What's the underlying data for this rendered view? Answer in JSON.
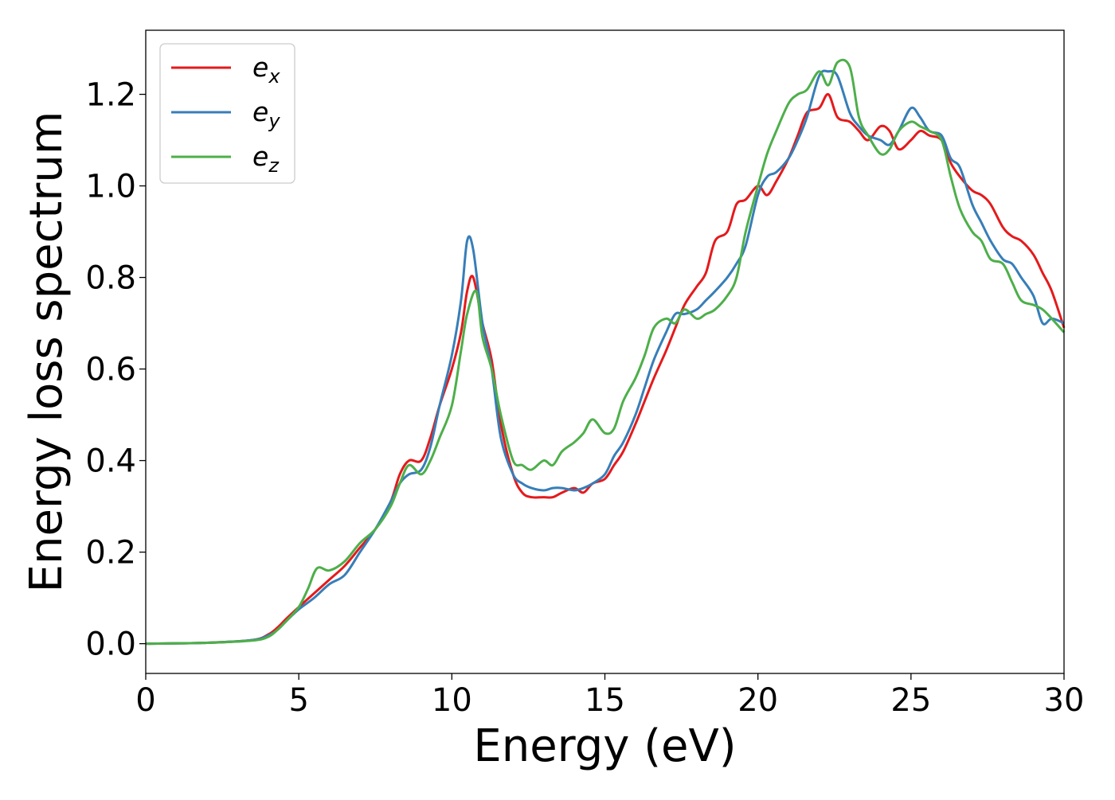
{
  "chart_data": {
    "type": "line",
    "title": "",
    "xlabel": "Energy (eV)",
    "ylabel": "Energy loss spectrum",
    "xlim": [
      0,
      30
    ],
    "ylim": [
      -0.065,
      1.34
    ],
    "xticks": [
      0,
      5,
      10,
      15,
      20,
      25,
      30
    ],
    "xtick_labels": [
      "0",
      "5",
      "10",
      "15",
      "20",
      "25",
      "30"
    ],
    "yticks": [
      0.0,
      0.2,
      0.4,
      0.6,
      0.8,
      1.0,
      1.2
    ],
    "ytick_labels": [
      "0.0",
      "0.2",
      "0.4",
      "0.6",
      "0.8",
      "1.0",
      "1.2"
    ],
    "grid": false,
    "legend_position": "top-left",
    "series": [
      {
        "name": "e_x",
        "legend_base": "e",
        "legend_sub": "x",
        "color": "#e41a1c",
        "x": [
          0,
          2,
          3.5,
          4,
          4.3,
          4.6,
          5,
          5.5,
          6,
          6.5,
          7,
          7.5,
          8,
          8.3,
          8.6,
          9,
          9.3,
          9.6,
          10,
          10.3,
          10.5,
          10.7,
          11,
          11.3,
          11.6,
          12,
          12.3,
          12.6,
          13,
          13.3,
          13.6,
          14,
          14.3,
          14.6,
          15,
          15.3,
          15.6,
          16,
          16.3,
          16.6,
          17,
          17.3,
          17.6,
          18,
          18.3,
          18.6,
          19,
          19.3,
          19.6,
          20,
          20.3,
          20.6,
          21,
          21.3,
          21.6,
          22,
          22.3,
          22.6,
          23,
          23.3,
          23.6,
          24,
          24.3,
          24.6,
          25,
          25.3,
          25.6,
          26,
          26.3,
          26.6,
          27,
          27.3,
          27.6,
          28,
          28.3,
          28.6,
          29,
          29.3,
          29.6,
          30
        ],
        "y": [
          0.0,
          0.002,
          0.008,
          0.02,
          0.035,
          0.055,
          0.08,
          0.11,
          0.14,
          0.17,
          0.21,
          0.25,
          0.31,
          0.37,
          0.4,
          0.4,
          0.45,
          0.52,
          0.6,
          0.68,
          0.77,
          0.8,
          0.7,
          0.62,
          0.48,
          0.37,
          0.33,
          0.32,
          0.32,
          0.32,
          0.33,
          0.34,
          0.33,
          0.35,
          0.36,
          0.39,
          0.42,
          0.48,
          0.53,
          0.58,
          0.64,
          0.69,
          0.74,
          0.78,
          0.81,
          0.88,
          0.9,
          0.96,
          0.97,
          1.0,
          0.98,
          1.01,
          1.06,
          1.11,
          1.16,
          1.17,
          1.2,
          1.15,
          1.14,
          1.12,
          1.1,
          1.13,
          1.12,
          1.08,
          1.1,
          1.12,
          1.11,
          1.1,
          1.05,
          1.02,
          0.99,
          0.98,
          0.96,
          0.91,
          0.89,
          0.88,
          0.85,
          0.81,
          0.77,
          0.69
        ]
      },
      {
        "name": "e_y",
        "legend_base": "e",
        "legend_sub": "y",
        "color": "#377eb8",
        "x": [
          0,
          2,
          3.5,
          4,
          4.3,
          4.6,
          5,
          5.5,
          6,
          6.5,
          7,
          7.5,
          8,
          8.3,
          8.6,
          9,
          9.3,
          9.6,
          10,
          10.3,
          10.5,
          10.7,
          11,
          11.3,
          11.6,
          12,
          12.3,
          12.6,
          13,
          13.3,
          13.6,
          14,
          14.3,
          14.6,
          15,
          15.3,
          15.6,
          16,
          16.3,
          16.6,
          17,
          17.3,
          17.6,
          18,
          18.3,
          18.6,
          19,
          19.3,
          19.6,
          20,
          20.3,
          20.6,
          21,
          21.3,
          21.6,
          22,
          22.3,
          22.6,
          23,
          23.3,
          23.6,
          24,
          24.3,
          24.6,
          25,
          25.3,
          25.6,
          26,
          26.3,
          26.6,
          27,
          27.3,
          27.6,
          28,
          28.3,
          28.6,
          29,
          29.3,
          29.6,
          30
        ],
        "y": [
          0.0,
          0.002,
          0.008,
          0.018,
          0.03,
          0.05,
          0.075,
          0.1,
          0.13,
          0.15,
          0.2,
          0.25,
          0.31,
          0.35,
          0.37,
          0.38,
          0.43,
          0.52,
          0.63,
          0.75,
          0.88,
          0.86,
          0.7,
          0.6,
          0.45,
          0.37,
          0.35,
          0.34,
          0.335,
          0.34,
          0.34,
          0.335,
          0.34,
          0.35,
          0.37,
          0.41,
          0.44,
          0.5,
          0.56,
          0.62,
          0.68,
          0.72,
          0.72,
          0.73,
          0.75,
          0.77,
          0.8,
          0.83,
          0.87,
          0.98,
          1.02,
          1.03,
          1.06,
          1.1,
          1.15,
          1.24,
          1.25,
          1.24,
          1.16,
          1.13,
          1.11,
          1.1,
          1.09,
          1.12,
          1.17,
          1.15,
          1.12,
          1.11,
          1.06,
          1.04,
          0.96,
          0.92,
          0.88,
          0.84,
          0.83,
          0.8,
          0.76,
          0.7,
          0.71,
          0.7
        ]
      },
      {
        "name": "e_z",
        "legend_base": "e",
        "legend_sub": "z",
        "color": "#4daf4a",
        "x": [
          0,
          2,
          3.5,
          4,
          4.3,
          4.6,
          5,
          5.3,
          5.6,
          6,
          6.5,
          7,
          7.5,
          8,
          8.3,
          8.6,
          9,
          9.3,
          9.6,
          10,
          10.3,
          10.5,
          10.8,
          11,
          11.3,
          11.6,
          12,
          12.3,
          12.6,
          13,
          13.3,
          13.6,
          14,
          14.3,
          14.6,
          15,
          15.3,
          15.6,
          16,
          16.3,
          16.6,
          17,
          17.3,
          17.6,
          18,
          18.3,
          18.6,
          19,
          19.3,
          19.6,
          20,
          20.3,
          20.6,
          21,
          21.3,
          21.6,
          22,
          22.3,
          22.6,
          23,
          23.3,
          23.6,
          24,
          24.3,
          24.6,
          25,
          25.3,
          25.6,
          26,
          26.3,
          26.6,
          27,
          27.3,
          27.6,
          28,
          28.3,
          28.6,
          29,
          29.3,
          29.6,
          30
        ],
        "y": [
          0.0,
          0.002,
          0.007,
          0.015,
          0.03,
          0.05,
          0.08,
          0.12,
          0.165,
          0.16,
          0.18,
          0.22,
          0.25,
          0.3,
          0.35,
          0.39,
          0.37,
          0.4,
          0.45,
          0.52,
          0.64,
          0.72,
          0.77,
          0.67,
          0.6,
          0.5,
          0.4,
          0.39,
          0.38,
          0.4,
          0.39,
          0.42,
          0.44,
          0.46,
          0.49,
          0.46,
          0.47,
          0.53,
          0.58,
          0.63,
          0.69,
          0.71,
          0.7,
          0.73,
          0.71,
          0.72,
          0.73,
          0.76,
          0.8,
          0.9,
          1.0,
          1.07,
          1.12,
          1.18,
          1.2,
          1.21,
          1.25,
          1.22,
          1.27,
          1.26,
          1.15,
          1.11,
          1.07,
          1.08,
          1.12,
          1.14,
          1.13,
          1.12,
          1.1,
          1.02,
          0.95,
          0.9,
          0.88,
          0.84,
          0.83,
          0.79,
          0.75,
          0.74,
          0.73,
          0.71,
          0.68
        ]
      }
    ]
  }
}
